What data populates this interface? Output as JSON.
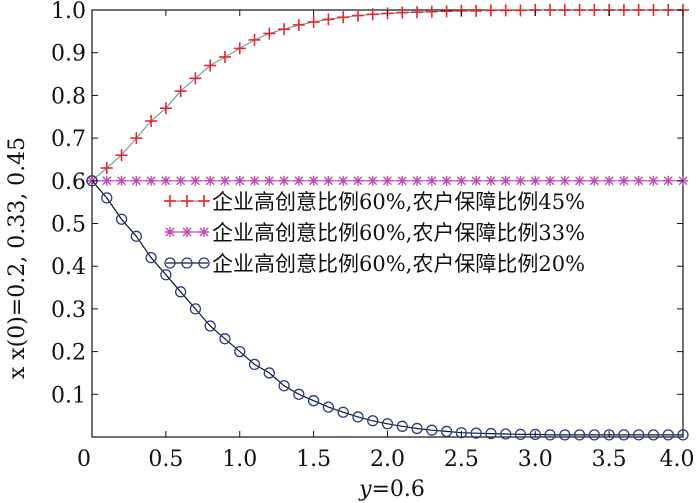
{
  "chart_data": {
    "type": "line",
    "xlabel_var": "y",
    "xlabel_value": "=0.6",
    "ylabel": "x x(0)=0.2, 0.33, 0.45",
    "xlim": [
      0,
      4.0
    ],
    "ylim": [
      0,
      1.0
    ],
    "x_ticks": [
      "0",
      "0.5",
      "1.0",
      "1.5",
      "2.0",
      "2.5",
      "3.0",
      "3.5",
      "4.0"
    ],
    "y_ticks": [
      "0.1",
      "0.2",
      "0.3",
      "0.4",
      "0.5",
      "0.6",
      "0.7",
      "0.8",
      "0.9",
      "1.0"
    ],
    "grid": false,
    "legend_position": "center-right",
    "series": [
      {
        "name": "企业高创意比例60%,农户保障比例45%",
        "marker": "plus",
        "color": "#e8262b",
        "line_color": "#6aa7a0",
        "x": [
          0,
          0.1,
          0.2,
          0.3,
          0.4,
          0.5,
          0.6,
          0.7,
          0.8,
          0.9,
          1.0,
          1.1,
          1.2,
          1.3,
          1.4,
          1.5,
          1.6,
          1.7,
          1.8,
          1.9,
          2.0,
          2.1,
          2.2,
          2.3,
          2.4,
          2.5,
          2.6,
          2.7,
          2.8,
          2.9,
          3.0,
          3.1,
          3.2,
          3.3,
          3.4,
          3.5,
          3.6,
          3.7,
          3.8,
          3.9,
          4.0
        ],
        "values": [
          0.6,
          0.63,
          0.66,
          0.7,
          0.74,
          0.77,
          0.81,
          0.84,
          0.87,
          0.89,
          0.91,
          0.93,
          0.945,
          0.955,
          0.965,
          0.972,
          0.978,
          0.983,
          0.987,
          0.99,
          0.992,
          0.994,
          0.995,
          0.996,
          0.997,
          0.998,
          0.998,
          0.999,
          0.999,
          0.999,
          1.0,
          1.0,
          1.0,
          1.0,
          1.0,
          1.0,
          1.0,
          1.0,
          1.0,
          1.0,
          1.0
        ]
      },
      {
        "name": "企业高创意比例60%,农户保障比例33%",
        "marker": "star",
        "color": "#c04ab5",
        "line_color": "#c04ab5",
        "x": [
          0,
          0.1,
          0.2,
          0.3,
          0.4,
          0.5,
          0.6,
          0.7,
          0.8,
          0.9,
          1.0,
          1.1,
          1.2,
          1.3,
          1.4,
          1.5,
          1.6,
          1.7,
          1.8,
          1.9,
          2.0,
          2.1,
          2.2,
          2.3,
          2.4,
          2.5,
          2.6,
          2.7,
          2.8,
          2.9,
          3.0,
          3.1,
          3.2,
          3.3,
          3.4,
          3.5,
          3.6,
          3.7,
          3.8,
          3.9,
          4.0
        ],
        "values": [
          0.6,
          0.6,
          0.6,
          0.6,
          0.6,
          0.6,
          0.6,
          0.6,
          0.6,
          0.6,
          0.6,
          0.6,
          0.6,
          0.6,
          0.6,
          0.6,
          0.6,
          0.6,
          0.6,
          0.6,
          0.6,
          0.6,
          0.6,
          0.6,
          0.6,
          0.6,
          0.6,
          0.6,
          0.6,
          0.6,
          0.6,
          0.6,
          0.6,
          0.6,
          0.6,
          0.6,
          0.6,
          0.6,
          0.6,
          0.6,
          0.6
        ]
      },
      {
        "name": "企业高创意比例60%,农户保障比例20%",
        "marker": "circle",
        "color": "#2b3990",
        "line_color": "#1a1a1a",
        "x": [
          0,
          0.1,
          0.2,
          0.3,
          0.4,
          0.5,
          0.6,
          0.7,
          0.8,
          0.9,
          1.0,
          1.1,
          1.2,
          1.3,
          1.4,
          1.5,
          1.6,
          1.7,
          1.8,
          1.9,
          2.0,
          2.1,
          2.2,
          2.3,
          2.4,
          2.5,
          2.6,
          2.7,
          2.8,
          2.9,
          3.0,
          3.1,
          3.2,
          3.3,
          3.4,
          3.5,
          3.6,
          3.7,
          3.8,
          3.9,
          4.0
        ],
        "values": [
          0.6,
          0.56,
          0.51,
          0.47,
          0.42,
          0.38,
          0.34,
          0.3,
          0.26,
          0.23,
          0.2,
          0.17,
          0.15,
          0.12,
          0.1,
          0.085,
          0.07,
          0.058,
          0.047,
          0.038,
          0.031,
          0.025,
          0.02,
          0.016,
          0.013,
          0.01,
          0.009,
          0.008,
          0.007,
          0.006,
          0.006,
          0.005,
          0.005,
          0.005,
          0.005,
          0.005,
          0.005,
          0.005,
          0.005,
          0.005,
          0.005
        ]
      }
    ]
  }
}
